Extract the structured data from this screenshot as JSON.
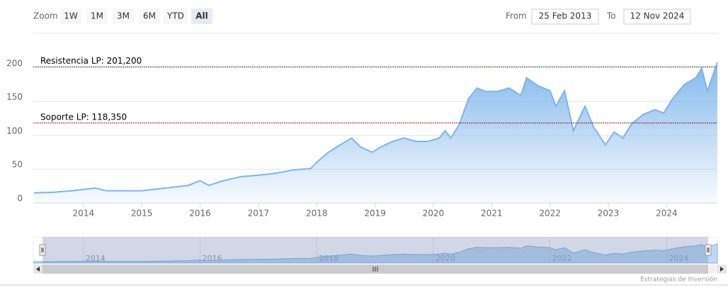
{
  "chart_data": {
    "type": "area",
    "range_selector": {
      "label": "Zoom",
      "buttons": [
        "1W",
        "1M",
        "3M",
        "6M",
        "YTD",
        "All"
      ],
      "selected": 5,
      "from_label": "From",
      "from": "25 Feb 2013",
      "to_label": "To",
      "to": "12 Nov 2024"
    },
    "x": [
      2013.15,
      2013.5,
      2013.8,
      2014.0,
      2014.2,
      2014.4,
      2014.7,
      2015.0,
      2015.2,
      2015.5,
      2015.8,
      2016.0,
      2016.15,
      2016.4,
      2016.7,
      2017.0,
      2017.3,
      2017.6,
      2017.9,
      2018.0,
      2018.2,
      2018.4,
      2018.6,
      2018.75,
      2018.95,
      2019.1,
      2019.3,
      2019.5,
      2019.7,
      2019.9,
      2020.1,
      2020.2,
      2020.3,
      2020.45,
      2020.6,
      2020.75,
      2020.9,
      2021.1,
      2021.3,
      2021.5,
      2021.6,
      2021.8,
      2022.0,
      2022.1,
      2022.25,
      2022.4,
      2022.6,
      2022.75,
      2022.95,
      2023.1,
      2023.25,
      2023.4,
      2023.6,
      2023.8,
      2023.95,
      2024.1,
      2024.3,
      2024.5,
      2024.6,
      2024.7,
      2024.8,
      2024.87
    ],
    "values": [
      15,
      16,
      18,
      20,
      22,
      18,
      18,
      18,
      20,
      23,
      26,
      33,
      26,
      33,
      39,
      41,
      44,
      49,
      51,
      60,
      75,
      86,
      96,
      83,
      75,
      83,
      91,
      96,
      91,
      91,
      96,
      107,
      96,
      117,
      154,
      170,
      165,
      165,
      170,
      159,
      185,
      173,
      166,
      143,
      166,
      107,
      143,
      112,
      86,
      105,
      96,
      117,
      131,
      138,
      133,
      154,
      175,
      185,
      199,
      166,
      191,
      208
    ],
    "color": "#7cb5ec",
    "xlim": [
      2013.14,
      2024.87
    ],
    "xticks": [
      2014,
      2015,
      2016,
      2017,
      2018,
      2019,
      2020,
      2021,
      2022,
      2023,
      2024
    ],
    "ylim": [
      0,
      250
    ],
    "yticks": [
      0,
      50,
      100,
      150,
      200
    ],
    "grid": true,
    "plot_lines": [
      {
        "value": 201.2,
        "label": "Resistencia LP: 201,200",
        "color": "#1e6b1e"
      },
      {
        "value": 118.35,
        "label": "Soporte LP: 118,350",
        "color": "#8b1a1a"
      }
    ],
    "navigator": {
      "xticks": [
        2014,
        2016,
        2018,
        2020,
        2022,
        2024
      ]
    },
    "credits": "Estrategias de Inversión"
  }
}
